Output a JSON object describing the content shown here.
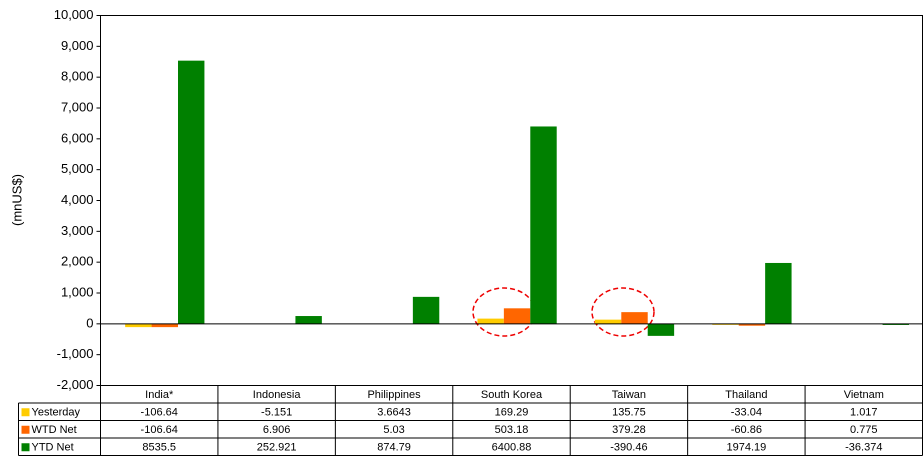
{
  "chart_data": {
    "type": "bar",
    "y_label": "(mnUS$)",
    "categories": [
      "India*",
      "Indonesia",
      "Philippines",
      "South Korea",
      "Taiwan",
      "Thailand",
      "Vietnam"
    ],
    "series": [
      {
        "name": "Yesterday",
        "color": "#ffcc00",
        "values": [
          -106.64,
          -5.151,
          3.6643,
          169.29,
          135.75,
          -33.04,
          1.017
        ]
      },
      {
        "name": "WTD Net",
        "color": "#ff6600",
        "values": [
          -106.64,
          6.906,
          5.03,
          503.18,
          379.28,
          -60.86,
          0.775
        ]
      },
      {
        "name": "YTD Net",
        "color": "#008000",
        "values": [
          8535.5,
          252.921,
          874.79,
          6400.88,
          -390.46,
          1974.19,
          -36.374
        ]
      }
    ],
    "ylim": [
      -2000,
      10000
    ],
    "yticks": [
      {
        "value": -2000,
        "label": "-2,000"
      },
      {
        "value": -1000,
        "label": "-1,000"
      },
      0,
      {
        "value": 1000,
        "label": "1,000"
      },
      {
        "value": 2000,
        "label": "2,000"
      },
      {
        "value": 3000,
        "label": "3,000"
      },
      {
        "value": 4000,
        "label": "4,000"
      },
      {
        "value": 5000,
        "label": "5,000"
      },
      {
        "value": 6000,
        "label": "6,000"
      },
      {
        "value": 7000,
        "label": "7,000"
      },
      {
        "value": 8000,
        "label": "8,000"
      },
      {
        "value": 9000,
        "label": "9,000"
      },
      {
        "value": 10000,
        "label": "10,000"
      }
    ]
  }
}
